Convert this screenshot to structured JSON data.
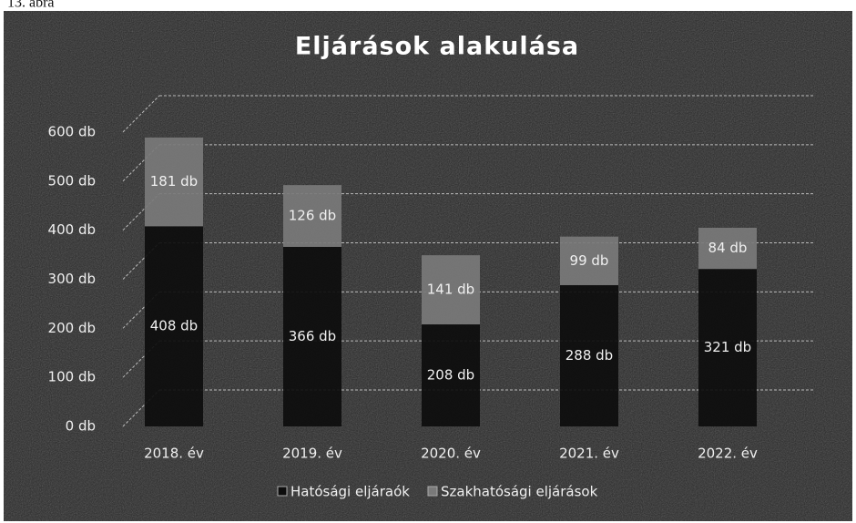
{
  "chart_data": {
    "type": "stacked_bar",
    "caption": "13. ábra",
    "title": "Eljárások alakulása",
    "categories": [
      "2018. év",
      "2019. év",
      "2020. év",
      "2021. év",
      "2022. év"
    ],
    "series": [
      {
        "name": "Hatósági eljáraók",
        "color": "#0d0d0d",
        "values": [
          408,
          366,
          208,
          288,
          321
        ],
        "value_labels": [
          "408 db",
          "366 db",
          "208 db",
          "288 db",
          "321 db"
        ]
      },
      {
        "name": "Szakhatósági eljárások",
        "color": "#7a7a7a",
        "values": [
          181,
          126,
          141,
          99,
          84
        ],
        "value_labels": [
          "181 db",
          "126 db",
          "141 db",
          "99 db",
          "84 db"
        ]
      }
    ],
    "ylim": [
      0,
      600
    ],
    "yticks": [
      {
        "value": 0,
        "label": "0 db"
      },
      {
        "value": 100,
        "label": "100 db"
      },
      {
        "value": 200,
        "label": "200 db"
      },
      {
        "value": 300,
        "label": "300 db"
      },
      {
        "value": 400,
        "label": "400 db"
      },
      {
        "value": 500,
        "label": "500 db"
      },
      {
        "value": 600,
        "label": "600 db"
      }
    ],
    "grid": true,
    "legend": "bottom"
  }
}
